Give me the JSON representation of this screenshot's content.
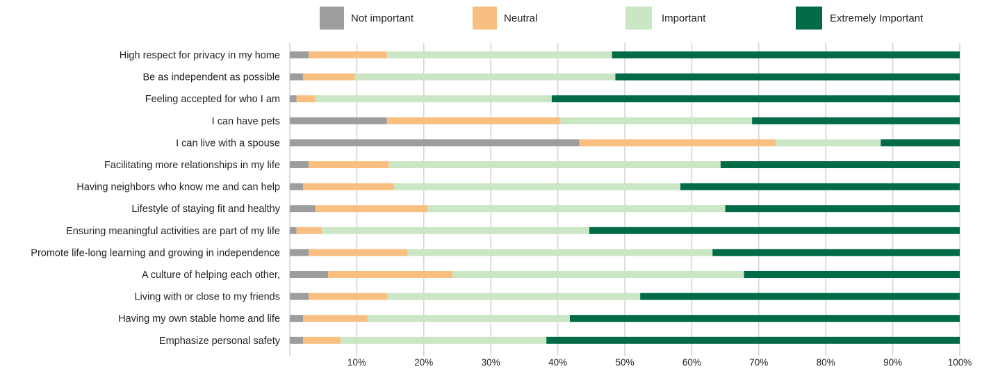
{
  "chart_data": {
    "type": "bar",
    "orientation": "horizontal",
    "stacked": true,
    "normalized": true,
    "title": "",
    "xlabel": "",
    "ylabel": "",
    "xlim": [
      0,
      100
    ],
    "x_ticks": [
      "10%",
      "20%",
      "30%",
      "40%",
      "50%",
      "60%",
      "70%",
      "80%",
      "90%",
      "100%"
    ],
    "x_tick_values": [
      10,
      20,
      30,
      40,
      50,
      60,
      70,
      80,
      90,
      100
    ],
    "grid": "vertical",
    "legend_position": "top",
    "categories": [
      "High respect for privacy in my home",
      "Be as independent as possible",
      "Feeling accepted for who I am",
      "I can have pets",
      "I can live with a spouse",
      "Facilitating more relationships in my life",
      "Having neighbors who know me and can help",
      "Lifestyle of staying fit and healthy",
      "Ensuring meaningful activities are part of my life",
      "Promote life-long learning and growing in independence",
      "A culture of helping each other,",
      "Living with or close to my friends",
      "Having my own stable home and life",
      "Emphasize personal safety"
    ],
    "series": [
      {
        "name": "Not important",
        "color": "#9d9d9d",
        "values": [
          2.8,
          2,
          1,
          14.5,
          43.2,
          2.8,
          2,
          3.8,
          1,
          2.8,
          5.7,
          2.8,
          2,
          2
        ]
      },
      {
        "name": "Neutral",
        "color": "#f9bf81",
        "values": [
          11.7,
          7.7,
          2.8,
          25.9,
          29.3,
          12,
          13.6,
          16.8,
          3.8,
          14.8,
          18.6,
          11.8,
          9.6,
          5.6
        ]
      },
      {
        "name": "Important",
        "color": "#cbe6c4",
        "values": [
          33.6,
          38.9,
          35.3,
          28.6,
          15.7,
          49.5,
          42.7,
          44.4,
          39.9,
          45.5,
          43.5,
          37.7,
          30.2,
          30.7
        ]
      },
      {
        "name": "Extremely Important",
        "color": "#006b45",
        "values": [
          51.9,
          51.4,
          60.9,
          31,
          11.8,
          35.7,
          41.7,
          35,
          55.3,
          36.9,
          32.2,
          47.7,
          58.2,
          61.7
        ]
      }
    ]
  }
}
